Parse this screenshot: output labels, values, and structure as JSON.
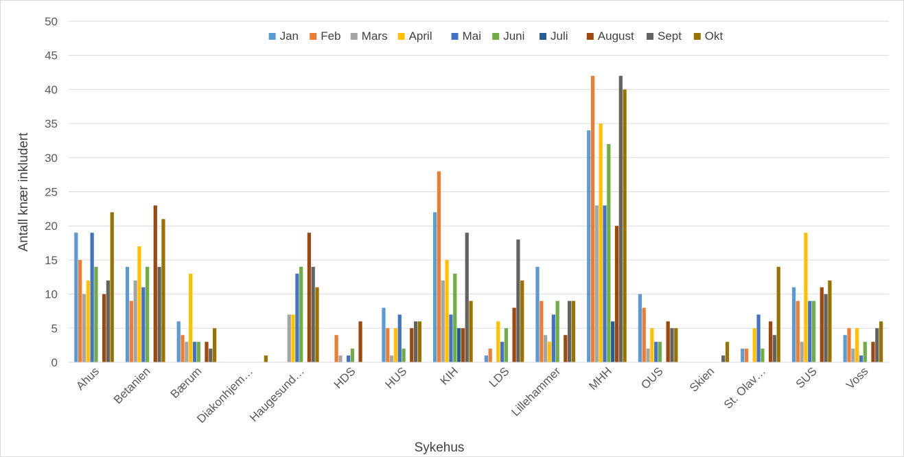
{
  "chart_data": {
    "type": "bar",
    "title": "",
    "xlabel": "Sykehus",
    "ylabel": "Antall knær inkludert",
    "ylim": [
      0,
      50
    ],
    "yticks": [
      0,
      5,
      10,
      15,
      20,
      25,
      30,
      35,
      40,
      45,
      50
    ],
    "grid": true,
    "legend_position": "top",
    "categories": [
      "Ahus",
      "Betanien",
      "Bærum",
      "Diakonhjem…",
      "Haugesund…",
      "HDS",
      "HUS",
      "KIH",
      "LDS",
      "Lillehammer",
      "MHH",
      "OUS",
      "Skien",
      "St. Olav…",
      "SUS",
      "Voss"
    ],
    "series": [
      {
        "name": "Jan",
        "color": "#5B9BD5",
        "values": [
          19,
          14,
          6,
          0,
          0,
          0,
          8,
          22,
          1,
          14,
          34,
          10,
          0,
          2,
          11,
          4
        ]
      },
      {
        "name": "Feb",
        "color": "#ED7D31",
        "values": [
          15,
          9,
          4,
          0,
          0,
          4,
          5,
          28,
          2,
          9,
          42,
          8,
          0,
          2,
          9,
          5
        ]
      },
      {
        "name": "Mars",
        "color": "#A5A5A5",
        "values": [
          10,
          12,
          3,
          0,
          7,
          1,
          1,
          12,
          0,
          4,
          23,
          2,
          0,
          0,
          3,
          2
        ]
      },
      {
        "name": "April",
        "color": "#FFC000",
        "values": [
          12,
          17,
          13,
          0,
          7,
          0,
          5,
          15,
          6,
          3,
          35,
          5,
          0,
          5,
          19,
          5
        ]
      },
      {
        "name": "Mai",
        "color": "#4472C4",
        "values": [
          19,
          11,
          3,
          0,
          13,
          1,
          7,
          7,
          3,
          7,
          23,
          3,
          0,
          7,
          9,
          1
        ]
      },
      {
        "name": "Juni",
        "color": "#70AD47",
        "values": [
          14,
          14,
          3,
          0,
          14,
          2,
          2,
          13,
          5,
          9,
          32,
          3,
          0,
          2,
          9,
          3
        ]
      },
      {
        "name": "Juli",
        "color": "#255E91",
        "values": [
          0,
          0,
          0,
          0,
          0,
          0,
          0,
          5,
          0,
          0,
          6,
          0,
          0,
          0,
          0,
          0
        ]
      },
      {
        "name": "August",
        "color": "#9E480E",
        "values": [
          10,
          23,
          3,
          0,
          19,
          6,
          5,
          5,
          8,
          4,
          20,
          6,
          0,
          6,
          11,
          3
        ]
      },
      {
        "name": "Sept",
        "color": "#636363",
        "values": [
          12,
          14,
          2,
          0,
          14,
          0,
          6,
          19,
          18,
          9,
          42,
          5,
          1,
          4,
          10,
          5
        ]
      },
      {
        "name": "Okt",
        "color": "#997300",
        "values": [
          22,
          21,
          5,
          1,
          11,
          0,
          6,
          9,
          12,
          9,
          40,
          5,
          3,
          14,
          12,
          6
        ]
      }
    ]
  }
}
